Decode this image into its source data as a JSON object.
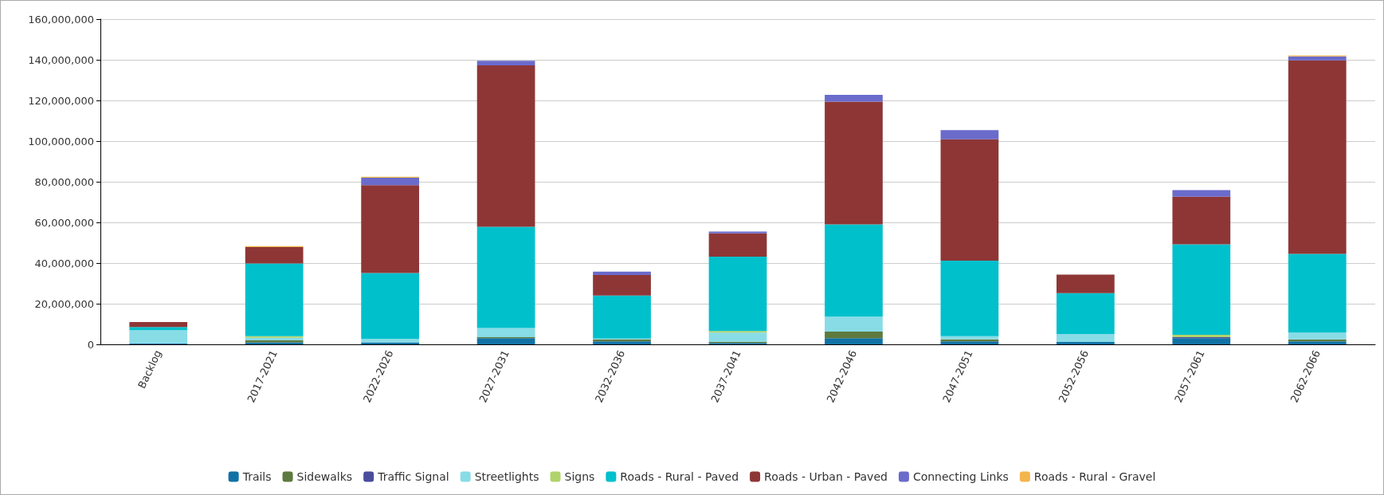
{
  "chart_data": {
    "type": "bar",
    "stacked": true,
    "grid": "y",
    "legend": "bottom",
    "categories": [
      "Backlog",
      "2017-2021",
      "2022-2026",
      "2027-2031",
      "2032-2036",
      "2037-2041",
      "2042-2046",
      "2047-2051",
      "2052-2056",
      "2057-2061",
      "2062-2066"
    ],
    "ylim": [
      0,
      160000000
    ],
    "yticks": [
      0,
      {
        "value": 20000000,
        "label": "20,000,000"
      },
      {
        "value": 40000000,
        "label": "40,000,000"
      },
      {
        "value": 60000000,
        "label": "60,000,000"
      },
      {
        "value": 80000000,
        "label": "80,000,000"
      },
      {
        "value": 100000000,
        "label": "100,000,000"
      },
      {
        "value": 120000000,
        "label": "120,000,000"
      },
      {
        "value": 140000000,
        "label": "140,000,000"
      },
      {
        "value": 160000000,
        "label": "160,000,000"
      }
    ],
    "series": [
      {
        "name": "Trails",
        "color": "#1172a6",
        "values": [
          500000,
          1000000,
          1000000,
          3000000,
          1500000,
          700000,
          3000000,
          1500000,
          1200000,
          3000000,
          1500000
        ]
      },
      {
        "name": "Sidewalks",
        "color": "#5e7a3e",
        "values": [
          0,
          1000000,
          null,
          500000,
          1000000,
          600000,
          3300000,
          1000000,
          0,
          0,
          1000000
        ]
      },
      {
        "name": "Traffic Signal",
        "color": "#4a4d9c",
        "values": [
          0,
          0,
          0,
          0,
          0,
          0,
          0,
          0,
          0,
          500000,
          0
        ]
      },
      {
        "name": "Streetlights",
        "color": "#88dce6",
        "values": [
          6500000,
          1200000,
          1700000,
          4500000,
          300000,
          4500000,
          7300000,
          1500000,
          3900000,
          0,
          3300000
        ]
      },
      {
        "name": "Signs",
        "color": "#b1d36b",
        "values": [
          0,
          800000,
          0,
          0,
          0,
          800000,
          0,
          0,
          0,
          1200000,
          0
        ]
      },
      {
        "name": "Roads - Rural - Paved",
        "color": "#00c0cc",
        "values": [
          1500000,
          35800000,
          32400000,
          49800000,
          21200000,
          36500000,
          45400000,
          37200000,
          20100000,
          44500000,
          38700000
        ]
      },
      {
        "name": "Roads - Urban - Paved",
        "color": "#8e3636",
        "values": [
          2500000,
          8000000,
          43200000,
          79500000,
          10100000,
          11500000,
          60400000,
          59700000,
          9100000,
          23400000,
          95200000
        ]
      },
      {
        "name": "Connecting Links",
        "color": "#6a6bcb",
        "values": [
          0,
          0,
          3700000,
          2200000,
          1700000,
          900000,
          3300000,
          4500000,
          0,
          3300000,
          2000000
        ]
      },
      {
        "name": "Roads - Rural - Gravel",
        "color": "#f2b64d",
        "values": [
          0,
          500000,
          500000,
          0,
          0,
          0,
          0,
          0,
          0,
          0,
          500000
        ]
      }
    ]
  }
}
